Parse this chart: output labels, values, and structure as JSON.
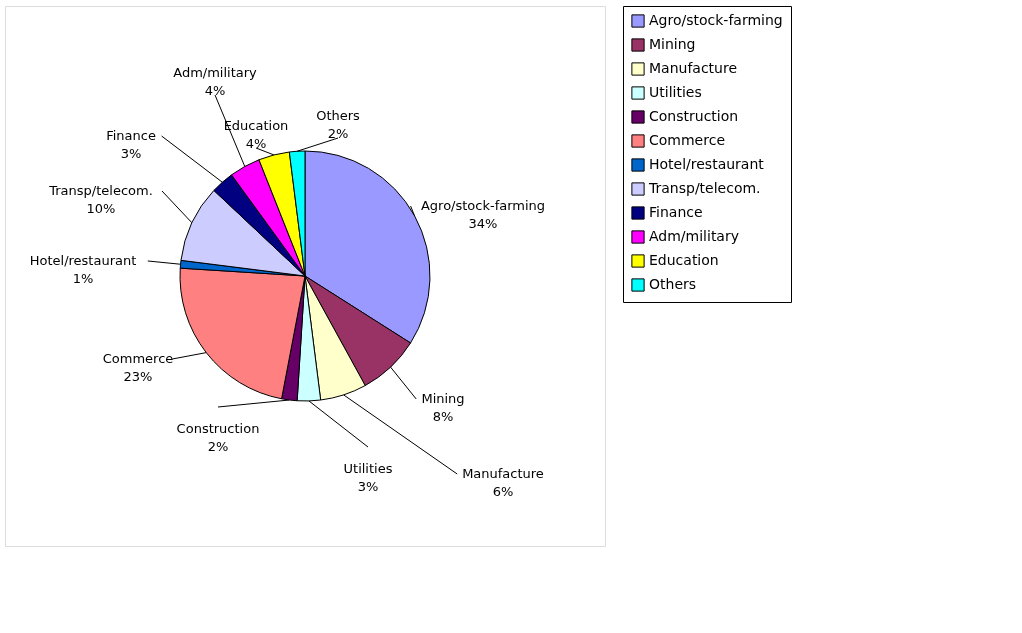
{
  "chart_data": {
    "type": "pie",
    "categories": [
      "Agro/stock-farming",
      "Mining",
      "Manufacture",
      "Utilities",
      "Construction",
      "Commerce",
      "Hotel/restaurant",
      "Transp/telecom.",
      "Finance",
      "Adm/military",
      "Education",
      "Others"
    ],
    "values": [
      34,
      8,
      6,
      3,
      2,
      23,
      1,
      10,
      3,
      4,
      4,
      2
    ],
    "value_labels": [
      "34%",
      "8%",
      "6%",
      "3%",
      "2%",
      "23%",
      "1%",
      "10%",
      "3%",
      "4%",
      "4%",
      "2%"
    ],
    "colors": [
      "#9999ff",
      "#993366",
      "#ffffcc",
      "#ccffff",
      "#660066",
      "#ff8080",
      "#0066cc",
      "#ccccff",
      "#000080",
      "#ff00ff",
      "#ffff00",
      "#00ffff"
    ],
    "legend": "right"
  }
}
